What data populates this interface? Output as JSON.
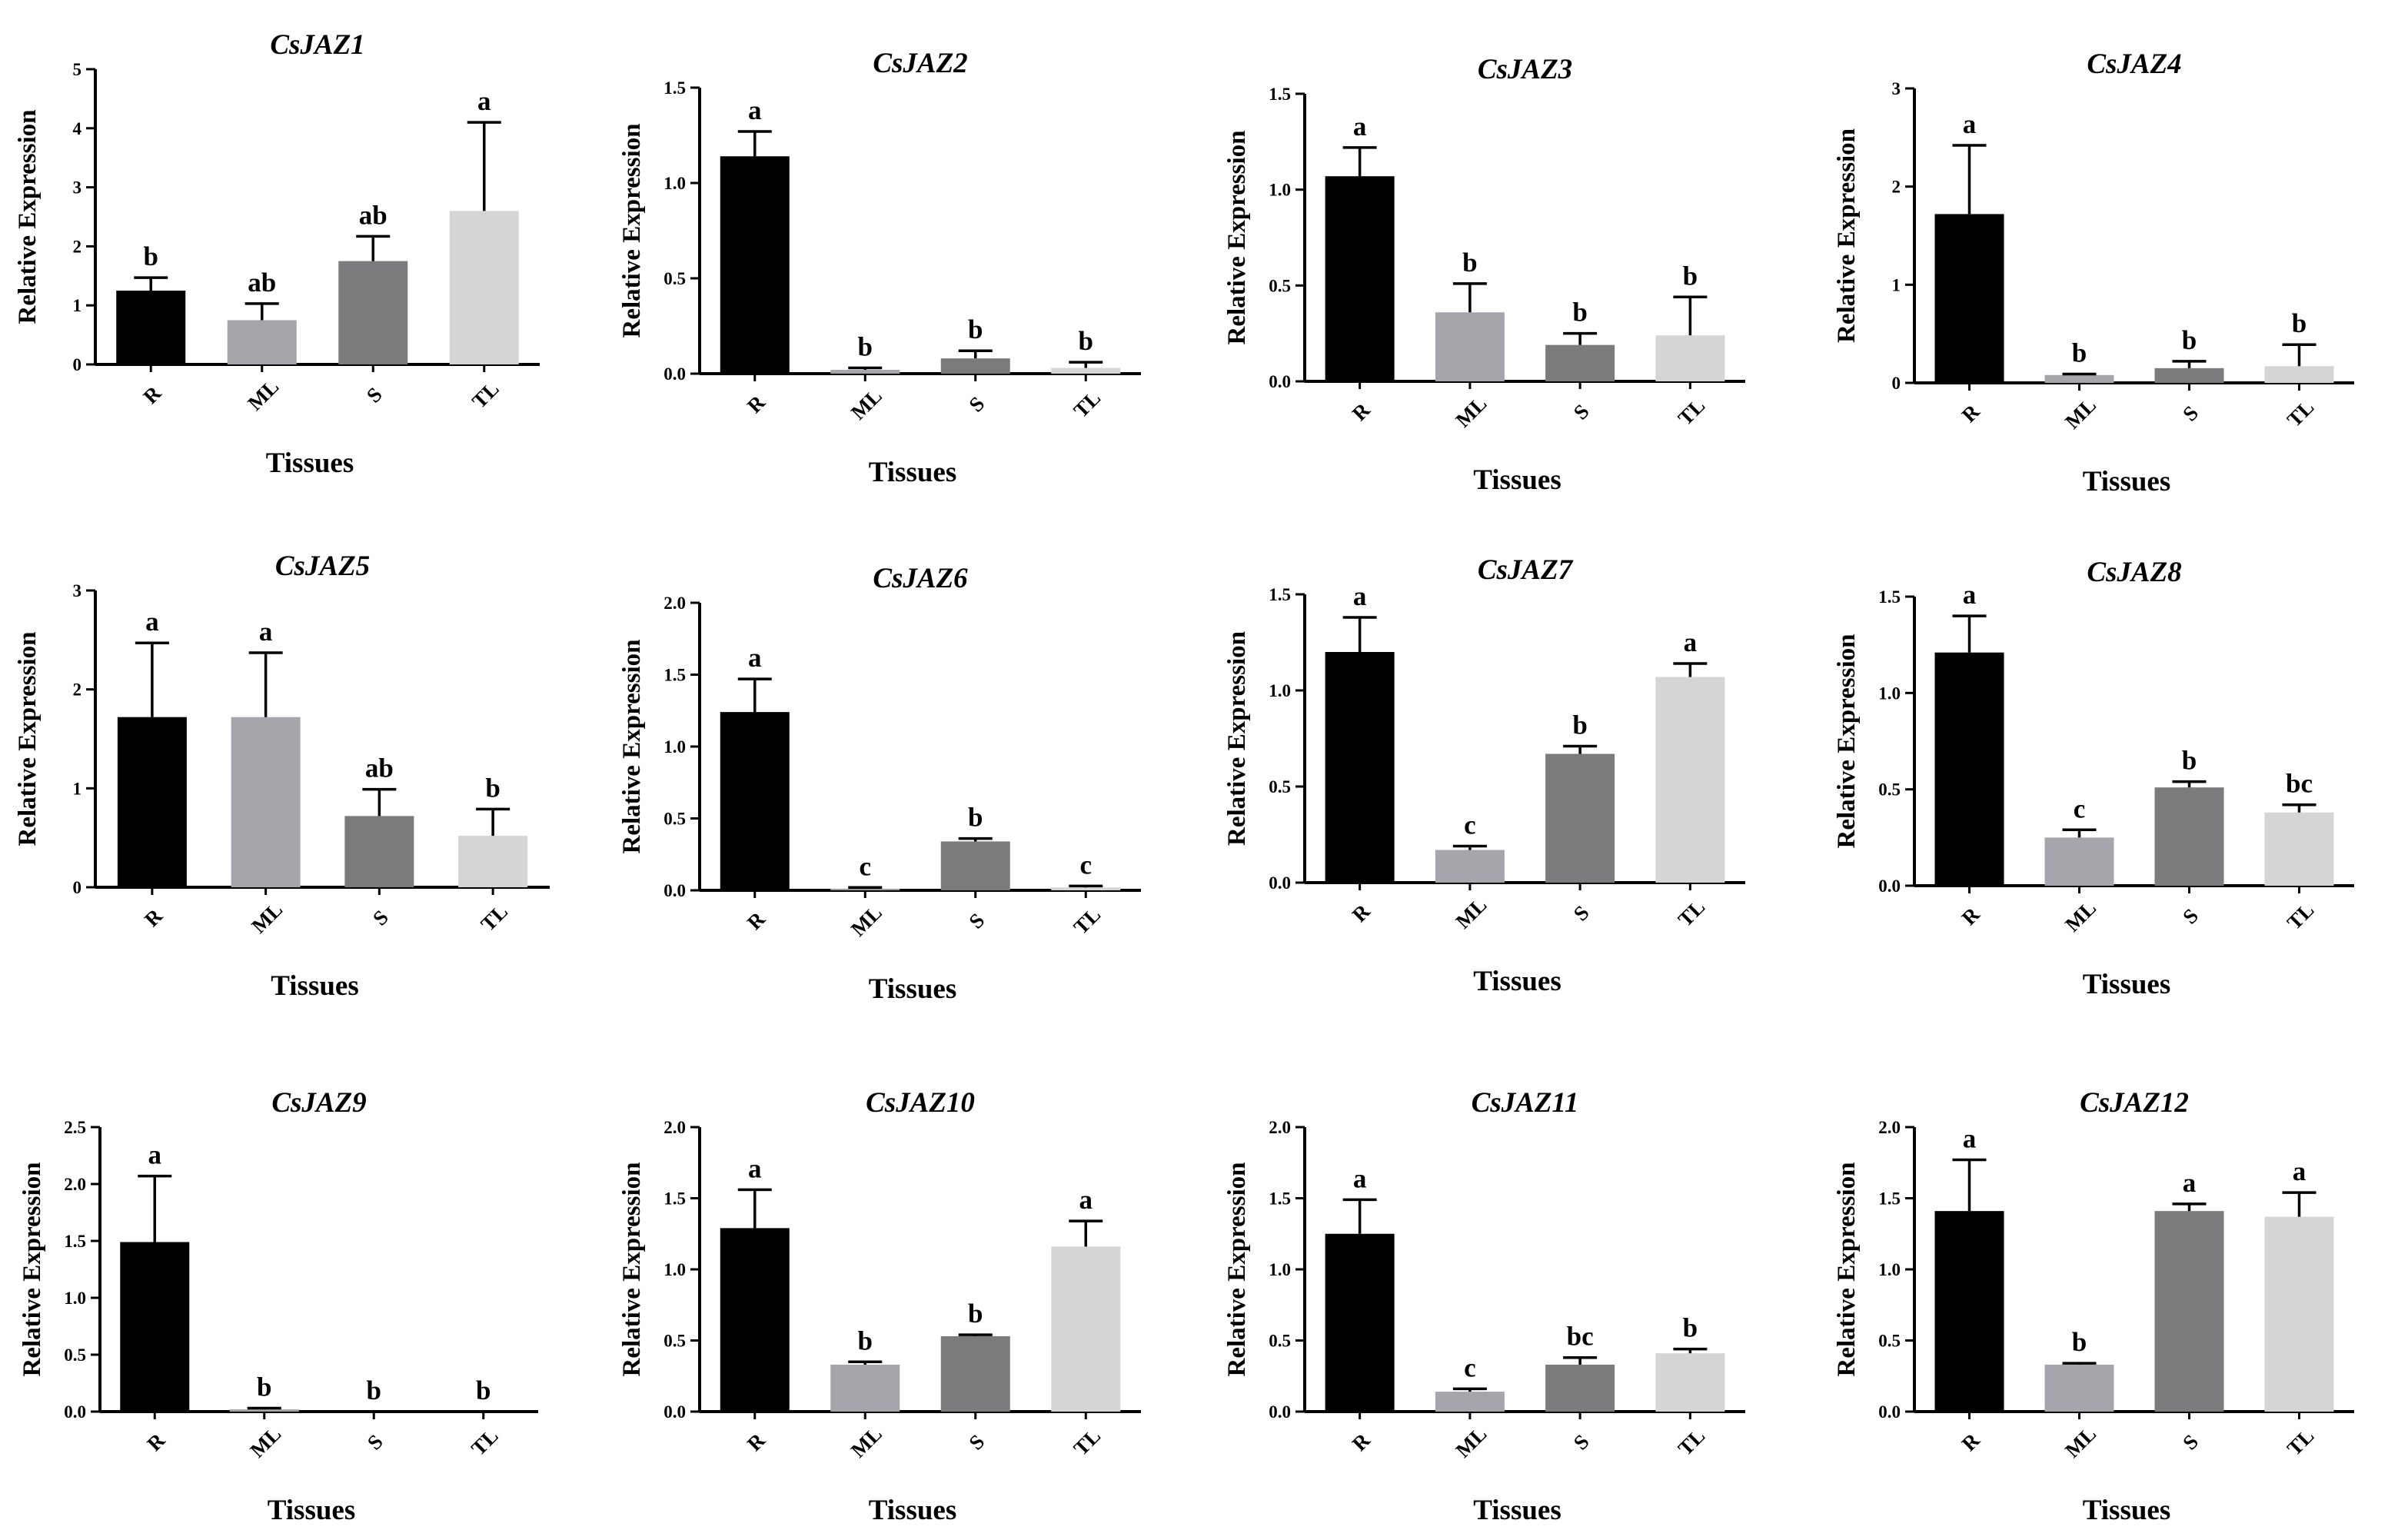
{
  "chart_data": [
    {
      "type": "bar",
      "title": "CsJAZ1",
      "xlabel": "Tissues",
      "ylabel": "Relative  Expression",
      "categories": [
        "R",
        "ML",
        "S",
        "TL"
      ],
      "values": [
        1.25,
        0.75,
        1.75,
        2.6
      ],
      "errors": [
        0.22,
        0.28,
        0.42,
        1.5
      ],
      "letters": [
        "b",
        "ab",
        "ab",
        "a"
      ],
      "ylim": [
        0,
        5
      ],
      "yticks": [
        "0",
        "1",
        "2",
        "3",
        "4",
        "5"
      ],
      "colors": [
        "#000000",
        "#a5a5ab",
        "#7b7b7d",
        "#d5d5d5"
      ]
    },
    {
      "type": "bar",
      "title": "CsJAZ2",
      "xlabel": "Tissues",
      "ylabel": "Relative  Expression",
      "categories": [
        "R",
        "ML",
        "S",
        "TL"
      ],
      "values": [
        1.14,
        0.02,
        0.08,
        0.03
      ],
      "errors": [
        0.13,
        0.01,
        0.04,
        0.03
      ],
      "letters": [
        "a",
        "b",
        "b",
        "b"
      ],
      "ylim": [
        0,
        1.5
      ],
      "yticks": [
        "0.0",
        "0.5",
        "1.0",
        "1.5"
      ],
      "colors": [
        "#000000",
        "#a5a5ab",
        "#7b7b7d",
        "#d5d5d5"
      ]
    },
    {
      "type": "bar",
      "title": "CsJAZ3",
      "xlabel": "Tissues",
      "ylabel": "Relative  Expression",
      "categories": [
        "R",
        "ML",
        "S",
        "TL"
      ],
      "values": [
        1.07,
        0.36,
        0.19,
        0.24
      ],
      "errors": [
        0.15,
        0.15,
        0.06,
        0.2
      ],
      "letters": [
        "a",
        "b",
        "b",
        "b"
      ],
      "ylim": [
        0,
        1.5
      ],
      "yticks": [
        "0.0",
        "0.5",
        "1.0",
        "1.5"
      ],
      "colors": [
        "#000000",
        "#a5a5ab",
        "#7b7b7d",
        "#d5d5d5"
      ]
    },
    {
      "type": "bar",
      "title": "CsJAZ4",
      "xlabel": "Tissues",
      "ylabel": "Relative  Expression",
      "categories": [
        "R",
        "ML",
        "S",
        "TL"
      ],
      "values": [
        1.72,
        0.08,
        0.15,
        0.17
      ],
      "errors": [
        0.7,
        0.01,
        0.07,
        0.22
      ],
      "letters": [
        "a",
        "b",
        "b",
        "b"
      ],
      "ylim": [
        0,
        3
      ],
      "yticks": [
        "0",
        "1",
        "2",
        "3"
      ],
      "colors": [
        "#000000",
        "#a5a5ab",
        "#7b7b7d",
        "#d5d5d5"
      ]
    },
    {
      "type": "bar",
      "title": "CsJAZ5",
      "xlabel": "Tissues",
      "ylabel": "Relative  Expression",
      "categories": [
        "R",
        "ML",
        "S",
        "TL"
      ],
      "values": [
        1.72,
        1.72,
        0.72,
        0.52
      ],
      "errors": [
        0.75,
        0.65,
        0.27,
        0.27
      ],
      "letters": [
        "a",
        "a",
        "ab",
        "b"
      ],
      "ylim": [
        0,
        3
      ],
      "yticks": [
        "0",
        "1",
        "2",
        "3"
      ],
      "colors": [
        "#000000",
        "#a5a5ab",
        "#7b7b7d",
        "#d5d5d5"
      ]
    },
    {
      "type": "bar",
      "title": "CsJAZ6",
      "xlabel": "Tissues",
      "ylabel": "Relative  Expression",
      "categories": [
        "R",
        "ML",
        "S",
        "TL"
      ],
      "values": [
        1.24,
        0.01,
        0.34,
        0.02
      ],
      "errors": [
        0.23,
        0.01,
        0.02,
        0.01
      ],
      "letters": [
        "a",
        "c",
        "b",
        "c"
      ],
      "ylim": [
        0,
        2
      ],
      "yticks": [
        "0.0",
        "0.5",
        "1.0",
        "1.5",
        "2.0"
      ],
      "colors": [
        "#000000",
        "#a5a5ab",
        "#7b7b7d",
        "#d5d5d5"
      ]
    },
    {
      "type": "bar",
      "title": "CsJAZ7",
      "xlabel": "Tissues",
      "ylabel": "Relative  Expression",
      "categories": [
        "R",
        "ML",
        "S",
        "TL"
      ],
      "values": [
        1.2,
        0.17,
        0.67,
        1.07
      ],
      "errors": [
        0.18,
        0.02,
        0.04,
        0.07
      ],
      "letters": [
        "a",
        "c",
        "b",
        "a"
      ],
      "ylim": [
        0,
        1.5
      ],
      "yticks": [
        "0.0",
        "0.5",
        "1.0",
        "1.5"
      ],
      "colors": [
        "#000000",
        "#a5a5ab",
        "#7b7b7d",
        "#d5d5d5"
      ]
    },
    {
      "type": "bar",
      "title": "CsJAZ8",
      "xlabel": "Tissues",
      "ylabel": "Relative  Expression",
      "categories": [
        "R",
        "ML",
        "S",
        "TL"
      ],
      "values": [
        1.21,
        0.25,
        0.51,
        0.38
      ],
      "errors": [
        0.19,
        0.04,
        0.03,
        0.04
      ],
      "letters": [
        "a",
        "c",
        "b",
        "bc"
      ],
      "ylim": [
        0,
        1.5
      ],
      "yticks": [
        "0.0",
        "0.5",
        "1.0",
        "1.5"
      ],
      "colors": [
        "#000000",
        "#a5a5ab",
        "#7b7b7d",
        "#d5d5d5"
      ]
    },
    {
      "type": "bar",
      "title": "CsJAZ9",
      "xlabel": "Tissues",
      "ylabel": "Relative  Expression",
      "categories": [
        "R",
        "ML",
        "S",
        "TL"
      ],
      "values": [
        1.49,
        0.02,
        0,
        0
      ],
      "errors": [
        0.58,
        0.01,
        0,
        0
      ],
      "letters": [
        "a",
        "b",
        "b",
        "b"
      ],
      "ylim": [
        0,
        2.5
      ],
      "yticks": [
        "0.0",
        "0.5",
        "1.0",
        "1.5",
        "2.0",
        "2.5"
      ],
      "colors": [
        "#000000",
        "#a5a5ab",
        "#7b7b7d",
        "#d5d5d5"
      ]
    },
    {
      "type": "bar",
      "title": "CsJAZ10",
      "xlabel": "Tissues",
      "ylabel": "Relative  Expression",
      "categories": [
        "R",
        "ML",
        "S",
        "TL"
      ],
      "values": [
        1.29,
        0.33,
        0.53,
        1.16
      ],
      "errors": [
        0.27,
        0.02,
        0.01,
        0.18
      ],
      "letters": [
        "a",
        "b",
        "b",
        "a"
      ],
      "ylim": [
        0,
        2
      ],
      "yticks": [
        "0.0",
        "0.5",
        "1.0",
        "1.5",
        "2.0"
      ],
      "colors": [
        "#000000",
        "#a5a5ab",
        "#7b7b7d",
        "#d5d5d5"
      ]
    },
    {
      "type": "bar",
      "title": "CsJAZ11",
      "xlabel": "Tissues",
      "ylabel": "Relative  Expression",
      "categories": [
        "R",
        "ML",
        "S",
        "TL"
      ],
      "values": [
        1.25,
        0.14,
        0.33,
        0.41
      ],
      "errors": [
        0.24,
        0.02,
        0.05,
        0.03
      ],
      "letters": [
        "a",
        "c",
        "bc",
        "b"
      ],
      "ylim": [
        0,
        2
      ],
      "yticks": [
        "0.0",
        "0.5",
        "1.0",
        "1.5",
        "2.0"
      ],
      "colors": [
        "#000000",
        "#a5a5ab",
        "#7b7b7d",
        "#d5d5d5"
      ]
    },
    {
      "type": "bar",
      "title": "CsJAZ12",
      "xlabel": "Tissues",
      "ylabel": "Relative  Expression",
      "categories": [
        "R",
        "ML",
        "S",
        "TL"
      ],
      "values": [
        1.41,
        0.33,
        1.41,
        1.37
      ],
      "errors": [
        0.36,
        0.01,
        0.05,
        0.17
      ],
      "letters": [
        "a",
        "b",
        "a",
        "a"
      ],
      "ylim": [
        0,
        2
      ],
      "yticks": [
        "0.0",
        "0.5",
        "1.0",
        "1.5",
        "2.0"
      ],
      "colors": [
        "#000000",
        "#a5a5ab",
        "#7b7b7d",
        "#d5d5d5"
      ]
    }
  ]
}
